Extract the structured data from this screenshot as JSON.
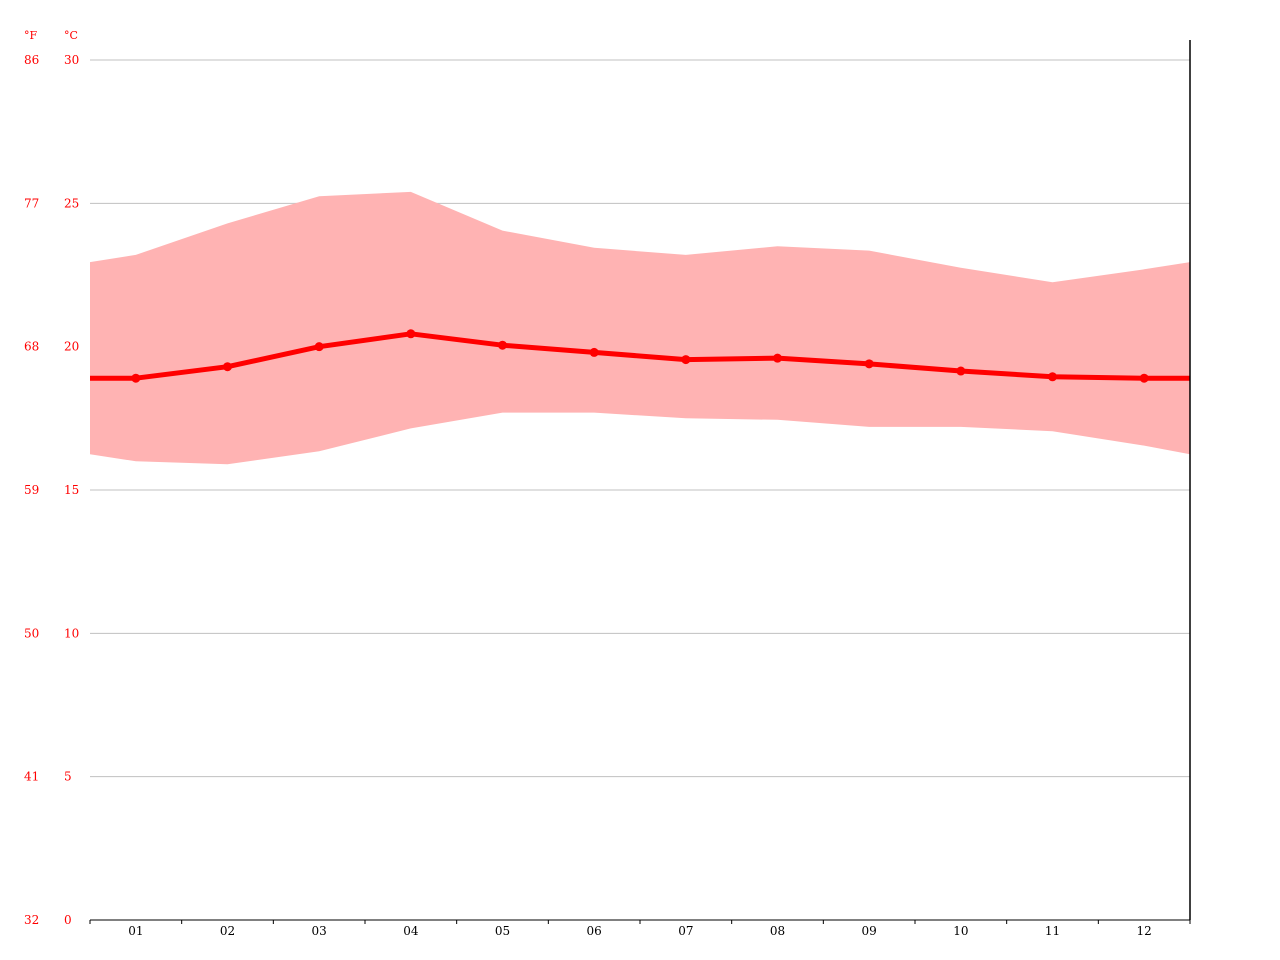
{
  "chart_data": {
    "type": "line",
    "title": "",
    "xlabel": "",
    "ylabel": "",
    "y_unit_left": "°F",
    "y_unit_right": "°C",
    "categories": [
      "01",
      "02",
      "03",
      "04",
      "05",
      "06",
      "07",
      "08",
      "09",
      "10",
      "11",
      "12"
    ],
    "y_ticks_c": [
      "0",
      "5",
      "10",
      "15",
      "20",
      "25",
      "30"
    ],
    "y_ticks_f": [
      "32",
      "41",
      "50",
      "59",
      "68",
      "77",
      "86"
    ],
    "ylim": [
      0,
      30
    ],
    "grid": true,
    "series": [
      {
        "role": "mean",
        "values": [
          18.9,
          19.3,
          20.0,
          20.45,
          20.05,
          19.8,
          19.55,
          19.6,
          19.4,
          19.15,
          18.95,
          18.9
        ],
        "edge_values": [
          18.9,
          18.9
        ]
      },
      {
        "role": "max",
        "values": [
          23.2,
          24.3,
          25.25,
          25.4,
          24.05,
          23.45,
          23.2,
          23.5,
          23.35,
          22.75,
          22.25,
          22.7
        ],
        "edge_values": [
          22.95,
          22.95
        ]
      },
      {
        "role": "min",
        "values": [
          16.0,
          15.9,
          16.35,
          17.15,
          17.7,
          17.7,
          17.5,
          17.45,
          17.2,
          17.2,
          17.05,
          16.55
        ],
        "edge_values": [
          16.25,
          16.25
        ]
      }
    ],
    "colors": {
      "mean_line": "#ff0000",
      "band_fill": "#ffb3b3",
      "axis_text": "#ff0000",
      "month_text": "#000000",
      "grid": "#c0c0c0",
      "axis": "#000000"
    }
  }
}
